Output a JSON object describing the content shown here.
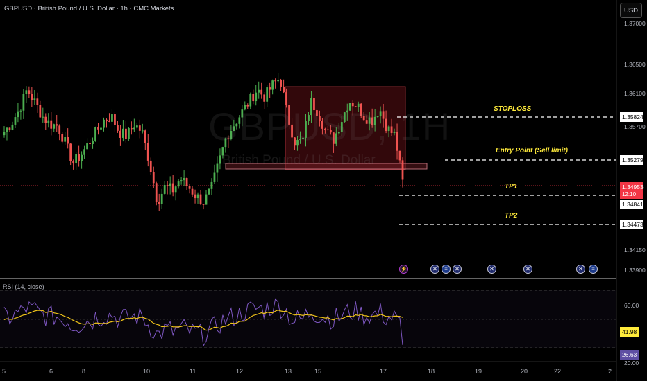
{
  "header": {
    "symbol_title": "GBPUSD · British Pound / U.S. Dollar · 1h · CMC Markets",
    "currency_button": "USD"
  },
  "watermark": {
    "symbol": "GBPUSD, 1H",
    "description": "British Pound / U.S. Dollar"
  },
  "price_axis": {
    "labels": [
      "1.37000",
      "1.36500",
      "1.36100",
      "1.35700",
      "1.34150",
      "1.33900"
    ],
    "price_tags": {
      "stoploss": "1.35824",
      "entry": "1.35279",
      "current": "1.34953",
      "countdown": "12:10",
      "tp1": "1.34841",
      "tp2": "1.34473"
    }
  },
  "annotations": {
    "stoploss": "STOPLOSS",
    "entry": "Entry Point (Sell limit)",
    "tp1": "TP1",
    "tp2": "TP2"
  },
  "rsi": {
    "title": "RSI (14, close)",
    "axis_labels": [
      "60.00",
      "20.00"
    ],
    "ma_value": "41.98",
    "rsi_value": "26.63"
  },
  "time_axis": {
    "labels": [
      "5",
      "6",
      "8",
      "10",
      "11",
      "12",
      "13",
      "15",
      "17",
      "18",
      "19",
      "20",
      "22",
      "2"
    ]
  },
  "events": [
    {
      "icon": "flash-icon"
    },
    {
      "icon": "uk-flag-icon"
    },
    {
      "icon": "us-flag-icon"
    },
    {
      "icon": "uk-flag-icon"
    },
    {
      "icon": "uk-flag-icon"
    },
    {
      "icon": "uk-flag-icon"
    },
    {
      "icon": "uk-flag-icon"
    },
    {
      "icon": "us-flag-icon"
    }
  ],
  "colors": {
    "up": "#26a69a",
    "up_bright": "#4caf50",
    "down": "#ef5350",
    "annotation": "#ffeb3b",
    "current_price": "#f23645",
    "rsi_line": "#7e57c2",
    "rsi_ma": "#f0c419"
  },
  "chart_data": {
    "type": "candlestick",
    "instrument": "GBPUSD",
    "timeframe": "1h",
    "price_range": [
      1.3375,
      1.3712
    ],
    "ohlc_closes_approx": [
      1.356,
      1.3572,
      1.359,
      1.3615,
      1.3598,
      1.358,
      1.357,
      1.3568,
      1.3545,
      1.352,
      1.353,
      1.3545,
      1.356,
      1.3575,
      1.358,
      1.356,
      1.3555,
      1.357,
      1.356,
      1.352,
      1.347,
      1.349,
      1.3485,
      1.35,
      1.349,
      1.3478,
      1.347,
      1.3485,
      1.352,
      1.3555,
      1.357,
      1.3585,
      1.36,
      1.3615,
      1.3605,
      1.362,
      1.363,
      1.358,
      1.3545,
      1.355,
      1.36,
      1.3585,
      1.356,
      1.355,
      1.3575,
      1.36,
      1.3595,
      1.358,
      1.3575,
      1.359,
      1.3565,
      1.3555,
      1.3495
    ],
    "levels": {
      "stoploss": 1.35824,
      "entry": 1.35279,
      "current": 1.34953,
      "tp1": 1.34841,
      "tp2": 1.34473
    },
    "rsi": {
      "overbought": 70,
      "oversold": 30,
      "current": 26.63,
      "ma": 41.98
    }
  }
}
